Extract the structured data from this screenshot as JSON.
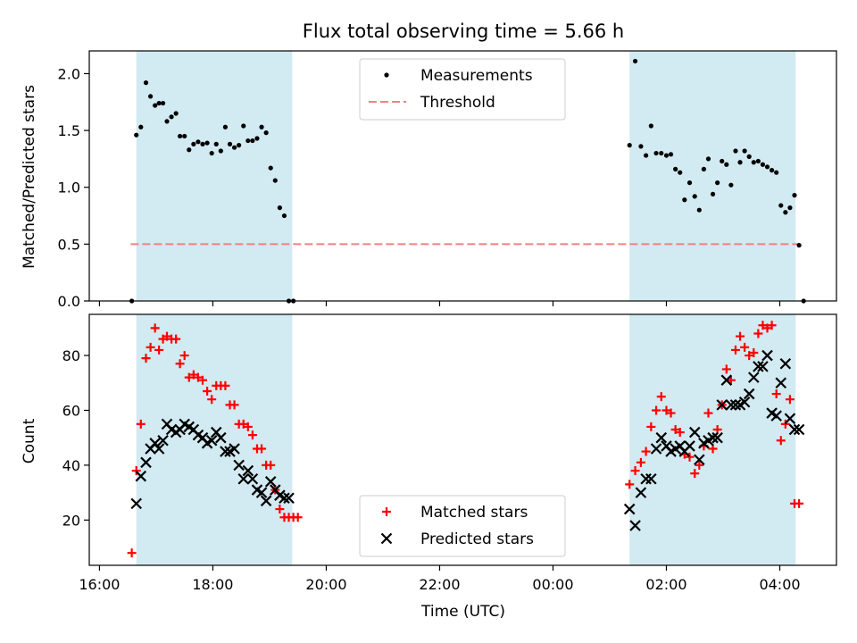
{
  "chart_data": {
    "title": "Flux total observing time = 5.66 h",
    "xlabel": "Time (UTC)",
    "x_unit": "hours since 16:00 UTC",
    "x_range": [
      -0.18,
      13.0
    ],
    "x_ticks": [
      {
        "value": 0,
        "label": "16:00"
      },
      {
        "value": 2,
        "label": "18:00"
      },
      {
        "value": 4,
        "label": "20:00"
      },
      {
        "value": 6,
        "label": "22:00"
      },
      {
        "value": 8,
        "label": "00:00"
      },
      {
        "value": 10,
        "label": "02:00"
      },
      {
        "value": 12,
        "label": "04:00"
      }
    ],
    "shaded_intervals": [
      {
        "start": 0.65,
        "end": 3.4,
        "color": "#add8e6"
      },
      {
        "start": 9.35,
        "end": 12.28,
        "color": "#add8e6"
      }
    ],
    "panels": [
      {
        "type": "scatter",
        "ylabel": "Matched/Predicted stars",
        "ylim": [
          0,
          2.2
        ],
        "y_ticks": [
          0.0,
          0.5,
          1.0,
          1.5,
          2.0
        ],
        "y_tick_labels": [
          "0.0",
          "0.5",
          "1.0",
          "1.5",
          "2.0"
        ],
        "legend": {
          "position": "top-center",
          "entries": [
            "Measurements",
            "Threshold"
          ]
        },
        "threshold": {
          "name": "Threshold",
          "value": 0.5,
          "x_range": [
            0.55,
            12.35
          ],
          "color": "#f08080"
        },
        "series": [
          {
            "name": "Measurements",
            "marker": "dot",
            "color": "#000000",
            "x": [
              0.57,
              0.65,
              0.73,
              0.82,
              0.9,
              0.98,
              1.05,
              1.12,
              1.19,
              1.27,
              1.35,
              1.42,
              1.5,
              1.58,
              1.66,
              1.74,
              1.82,
              1.9,
              1.98,
              2.06,
              2.14,
              2.22,
              2.3,
              2.38,
              2.46,
              2.54,
              2.62,
              2.7,
              2.78,
              2.86,
              2.94,
              3.02,
              3.1,
              3.18,
              3.26,
              3.34,
              3.42,
              3.5,
              3.56,
              9.35,
              9.45,
              9.55,
              9.64,
              9.73,
              9.82,
              9.91,
              10.0,
              10.08,
              10.16,
              10.24,
              10.32,
              10.41,
              10.5,
              10.58,
              10.66,
              10.74,
              10.82,
              10.9,
              10.98,
              11.06,
              11.14,
              11.22,
              11.3,
              11.38,
              11.46,
              11.54,
              11.62,
              11.7,
              11.78,
              11.86,
              11.94,
              12.02,
              12.1,
              12.18,
              12.26,
              12.34,
              12.42
            ],
            "y": [
              0.0,
              1.46,
              1.53,
              1.92,
              1.8,
              1.72,
              1.74,
              1.74,
              1.58,
              1.62,
              1.65,
              1.45,
              1.45,
              1.33,
              1.38,
              1.4,
              1.38,
              1.39,
              1.3,
              1.38,
              1.32,
              1.53,
              1.38,
              1.35,
              1.37,
              1.54,
              1.41,
              1.41,
              1.43,
              1.53,
              1.48,
              1.17,
              1.06,
              0.82,
              0.75,
              0.0,
              0.0,
              null,
              null,
              1.37,
              2.11,
              1.36,
              1.28,
              1.54,
              1.3,
              1.3,
              1.28,
              1.29,
              1.16,
              1.13,
              0.89,
              1.04,
              0.92,
              0.8,
              1.16,
              1.25,
              0.94,
              1.04,
              1.23,
              1.2,
              1.02,
              1.32,
              1.22,
              1.32,
              1.27,
              1.22,
              1.23,
              1.2,
              1.18,
              1.15,
              1.13,
              0.84,
              0.78,
              0.82,
              0.93,
              0.49,
              0.0
            ]
          }
        ]
      },
      {
        "type": "scatter",
        "ylabel": "Count",
        "ylim": [
          3.5,
          95
        ],
        "y_ticks": [
          20,
          40,
          60,
          80
        ],
        "y_tick_labels": [
          "20",
          "40",
          "60",
          "80"
        ],
        "legend": {
          "position": "bottom-center",
          "entries": [
            "Matched stars",
            "Predicted stars"
          ]
        },
        "series": [
          {
            "name": "Matched stars",
            "marker": "plus",
            "color": "#ff0000",
            "x": [
              0.57,
              0.65,
              0.73,
              0.82,
              0.9,
              0.98,
              1.05,
              1.12,
              1.19,
              1.27,
              1.35,
              1.42,
              1.5,
              1.58,
              1.66,
              1.74,
              1.82,
              1.9,
              1.98,
              2.06,
              2.14,
              2.22,
              2.3,
              2.38,
              2.46,
              2.54,
              2.62,
              2.7,
              2.78,
              2.86,
              2.94,
              3.02,
              3.1,
              3.18,
              3.26,
              3.34,
              3.42,
              3.5,
              3.56,
              9.35,
              9.45,
              9.55,
              9.64,
              9.73,
              9.82,
              9.91,
              10.0,
              10.08,
              10.16,
              10.24,
              10.32,
              10.41,
              10.5,
              10.58,
              10.66,
              10.74,
              10.82,
              10.9,
              10.98,
              11.06,
              11.14,
              11.22,
              11.3,
              11.38,
              11.46,
              11.54,
              11.62,
              11.7,
              11.78,
              11.86,
              11.94,
              12.02,
              12.1,
              12.18,
              12.26,
              12.34,
              12.42
            ],
            "y": [
              8,
              38,
              55,
              79,
              83,
              90,
              82,
              86,
              87,
              86,
              86,
              77,
              80,
              72,
              73,
              72,
              71,
              67,
              64,
              69,
              69,
              69,
              62,
              62,
              55,
              55,
              54,
              51,
              46,
              46,
              40,
              40,
              31,
              24,
              21,
              21,
              21,
              21,
              null,
              33,
              38,
              41,
              45,
              54,
              60,
              65,
              60,
              59,
              53,
              52,
              44,
              43,
              37,
              40,
              47,
              59,
              46,
              53,
              62,
              75,
              71,
              82,
              87,
              83,
              80,
              81,
              88,
              91,
              90,
              91,
              66,
              49,
              55,
              64,
              26,
              26,
              null
            ]
          },
          {
            "name": "Predicted stars",
            "marker": "x",
            "color": "#000000",
            "x": [
              0.65,
              0.73,
              0.82,
              0.9,
              0.98,
              1.05,
              1.12,
              1.19,
              1.27,
              1.35,
              1.42,
              1.5,
              1.58,
              1.66,
              1.74,
              1.82,
              1.9,
              1.98,
              2.06,
              2.14,
              2.22,
              2.3,
              2.38,
              2.46,
              2.54,
              2.62,
              2.7,
              2.78,
              2.86,
              2.94,
              3.02,
              3.1,
              3.18,
              3.26,
              3.34,
              9.35,
              9.45,
              9.55,
              9.64,
              9.73,
              9.82,
              9.91,
              10.0,
              10.08,
              10.16,
              10.24,
              10.32,
              10.41,
              10.5,
              10.58,
              10.66,
              10.74,
              10.82,
              10.9,
              10.98,
              11.06,
              11.14,
              11.22,
              11.3,
              11.38,
              11.46,
              11.54,
              11.62,
              11.7,
              11.78,
              11.86,
              11.94,
              12.02,
              12.1,
              12.18,
              12.26,
              12.34
            ],
            "y": [
              26,
              36,
              41,
              46,
              48,
              46,
              49,
              55,
              53,
              52,
              53,
              55,
              54,
              53,
              51,
              50,
              48,
              49,
              52,
              50,
              45,
              45,
              46,
              40,
              35,
              38,
              35,
              31,
              30,
              27,
              34,
              31,
              29,
              28,
              28,
              24,
              18,
              30,
              35,
              35,
              46,
              50,
              47,
              45,
              46,
              47,
              45,
              47,
              52,
              42,
              48,
              49,
              50,
              50,
              62,
              71,
              62,
              62,
              62,
              63,
              66,
              72,
              76,
              76,
              80,
              59,
              58,
              70,
              77,
              57,
              53,
              53
            ]
          }
        ]
      }
    ]
  }
}
